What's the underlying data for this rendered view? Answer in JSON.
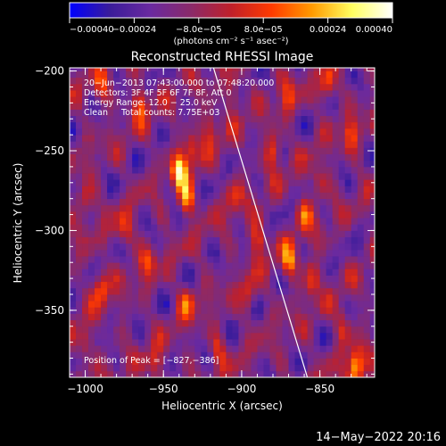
{
  "chart_data": {
    "type": "heatmap",
    "title": "Reconstructed RHESSI Image",
    "xlabel": "Heliocentric X (arcsec)",
    "ylabel": "Heliocentric Y (arcsec)",
    "xlim": [
      -1010,
      -815
    ],
    "ylim": [
      -392,
      -198
    ],
    "x_ticks": [
      -1000,
      -950,
      -900,
      -850
    ],
    "x_tick_labels": [
      "−1000",
      "−950",
      "−900",
      "−850"
    ],
    "y_ticks": [
      -200,
      -250,
      -300,
      -350
    ],
    "y_tick_labels": [
      "−200",
      "−250",
      "−300",
      "−350"
    ],
    "colorbar": {
      "range": [
        -0.0004,
        0.0004
      ],
      "ticks": [
        -0.0004,
        -0.00024,
        -8e-05,
        8e-05,
        0.00024,
        0.0004
      ],
      "tick_labels": [
        "−0.00040",
        "−0.00024",
        "−8.0e−05",
        "8.0e−05",
        "0.00024",
        "0.00040"
      ],
      "unit_label": "(photons cm⁻² s⁻¹ asec⁻²)",
      "colors": [
        "#0000ff",
        "#3a1c9a",
        "#6a2aa0",
        "#8a2a6a",
        "#c0202a",
        "#ff3a00",
        "#ff9a00",
        "#ffff60",
        "#ffffff"
      ]
    },
    "annotations": [
      "20−Jun−2013 07:43:00.000 to 07:48:20.000",
      "Detectors: 3F 4F 5F 6F 7F 8F, Att 0",
      "Energy Range: 12.0 − 25.0 keV",
      "Clean     Total counts: 7.75E+03"
    ],
    "peak_label": "Position of Peak = [−827,−386]",
    "peak": [
      -827,
      -386
    ],
    "limb_line": [
      [
        -918,
        -198
      ],
      [
        -858,
        -392
      ]
    ],
    "hotspots": [
      {
        "x": -940,
        "y": -262,
        "w": 0.0004
      },
      {
        "x": -935,
        "y": -280,
        "w": 0.00035
      },
      {
        "x": -932,
        "y": -250,
        "w": 0.00022
      },
      {
        "x": -965,
        "y": -220,
        "w": 0.00025
      },
      {
        "x": -920,
        "y": -235,
        "w": 0.00022
      },
      {
        "x": -880,
        "y": -250,
        "w": 0.00025
      },
      {
        "x": -870,
        "y": -215,
        "w": 0.0002
      },
      {
        "x": -845,
        "y": -210,
        "w": 0.00025
      },
      {
        "x": -830,
        "y": -240,
        "w": 0.00022
      },
      {
        "x": -860,
        "y": -290,
        "w": 0.00025
      },
      {
        "x": -890,
        "y": -305,
        "w": 0.00028
      },
      {
        "x": -870,
        "y": -318,
        "w": 0.0003
      },
      {
        "x": -855,
        "y": -330,
        "w": 0.00026
      },
      {
        "x": -990,
        "y": -335,
        "w": 0.00028
      },
      {
        "x": -960,
        "y": -320,
        "w": 0.0002
      },
      {
        "x": -935,
        "y": -345,
        "w": 0.00024
      },
      {
        "x": -895,
        "y": -340,
        "w": 0.00018
      },
      {
        "x": -1000,
        "y": -280,
        "w": 0.00022
      },
      {
        "x": -990,
        "y": -210,
        "w": 0.0002
      },
      {
        "x": -975,
        "y": -300,
        "w": 0.00022
      },
      {
        "x": -905,
        "y": -215,
        "w": 0.0002
      },
      {
        "x": -915,
        "y": -375,
        "w": 0.00018
      },
      {
        "x": -827,
        "y": -386,
        "w": 0.00042
      },
      {
        "x": -835,
        "y": -360,
        "w": 0.00022
      },
      {
        "x": -955,
        "y": -385,
        "w": 0.0002
      },
      {
        "x": -1000,
        "y": -370,
        "w": 0.0002
      },
      {
        "x": -850,
        "y": -270,
        "w": 0.00018
      },
      {
        "x": -905,
        "y": -280,
        "w": 0.00018
      }
    ]
  },
  "footer": {
    "timestamp": "14−May−2022 20:16"
  }
}
